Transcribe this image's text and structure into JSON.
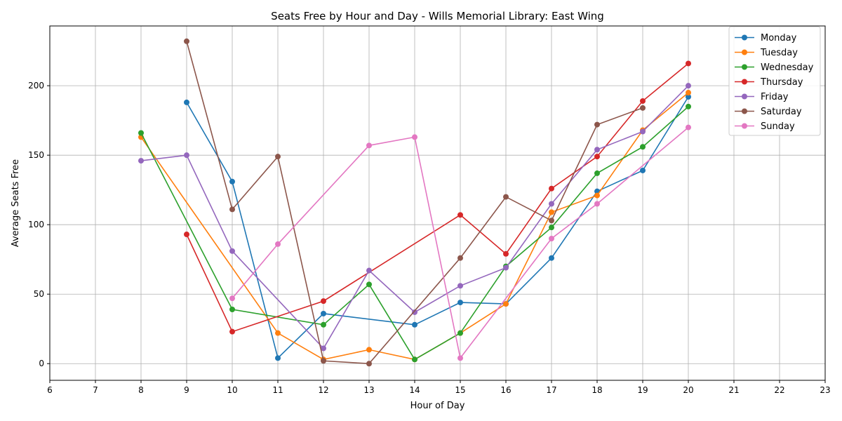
{
  "chart_data": {
    "type": "line",
    "title": "Seats Free by Hour and Day - Wills Memorial Library: East Wing",
    "xlabel": "Hour of Day",
    "ylabel": "Average Seats Free",
    "xlim": [
      6,
      23
    ],
    "ylim": [
      -12,
      243
    ],
    "xticks": [
      6,
      7,
      8,
      9,
      10,
      11,
      12,
      13,
      14,
      15,
      16,
      17,
      18,
      19,
      20,
      21,
      22,
      23
    ],
    "yticks": [
      0,
      50,
      100,
      150,
      200
    ],
    "grid": true,
    "legend_position": "top-right",
    "series": [
      {
        "name": "Monday",
        "color": "#1f77b4",
        "points": [
          [
            9,
            188
          ],
          [
            10,
            131
          ],
          [
            11,
            4
          ],
          [
            12,
            36
          ],
          [
            14,
            28
          ],
          [
            15,
            44
          ],
          [
            16,
            43
          ],
          [
            17,
            76
          ],
          [
            18,
            124
          ],
          [
            19,
            139
          ],
          [
            20,
            192
          ]
        ]
      },
      {
        "name": "Tuesday",
        "color": "#ff7f0e",
        "points": [
          [
            8,
            163
          ],
          [
            11,
            22
          ],
          [
            12,
            3
          ],
          [
            13,
            10
          ],
          [
            14,
            3
          ],
          [
            15,
            22
          ],
          [
            16,
            43
          ],
          [
            17,
            109
          ],
          [
            18,
            121
          ],
          [
            19,
            168
          ],
          [
            20,
            195
          ]
        ]
      },
      {
        "name": "Wednesday",
        "color": "#2ca02c",
        "points": [
          [
            8,
            166
          ],
          [
            10,
            39
          ],
          [
            12,
            28
          ],
          [
            13,
            57
          ],
          [
            14,
            3
          ],
          [
            15,
            22
          ],
          [
            16,
            70
          ],
          [
            17,
            98
          ],
          [
            18,
            137
          ],
          [
            19,
            156
          ],
          [
            20,
            185
          ]
        ]
      },
      {
        "name": "Thursday",
        "color": "#d62728",
        "points": [
          [
            9,
            93
          ],
          [
            10,
            23
          ],
          [
            12,
            45
          ],
          [
            15,
            107
          ],
          [
            16,
            79
          ],
          [
            17,
            126
          ],
          [
            18,
            149
          ],
          [
            19,
            189
          ],
          [
            20,
            216
          ]
        ]
      },
      {
        "name": "Friday",
        "color": "#9467bd",
        "points": [
          [
            8,
            146
          ],
          [
            9,
            150
          ],
          [
            10,
            81
          ],
          [
            12,
            11
          ],
          [
            13,
            67
          ],
          [
            14,
            37
          ],
          [
            15,
            56
          ],
          [
            16,
            69
          ],
          [
            17,
            115
          ],
          [
            18,
            154
          ],
          [
            19,
            167
          ],
          [
            20,
            200
          ]
        ]
      },
      {
        "name": "Saturday",
        "color": "#8c564b",
        "points": [
          [
            9,
            232
          ],
          [
            10,
            111
          ],
          [
            11,
            149
          ],
          [
            12,
            2
          ],
          [
            13,
            0
          ],
          [
            15,
            76
          ],
          [
            16,
            120
          ],
          [
            17,
            103
          ],
          [
            18,
            172
          ],
          [
            19,
            184
          ]
        ]
      },
      {
        "name": "Sunday",
        "color": "#e377c2",
        "points": [
          [
            10,
            47
          ],
          [
            11,
            86
          ],
          [
            13,
            157
          ],
          [
            14,
            163
          ],
          [
            15,
            4
          ],
          [
            17,
            90
          ],
          [
            18,
            115
          ],
          [
            20,
            170
          ]
        ]
      }
    ]
  }
}
